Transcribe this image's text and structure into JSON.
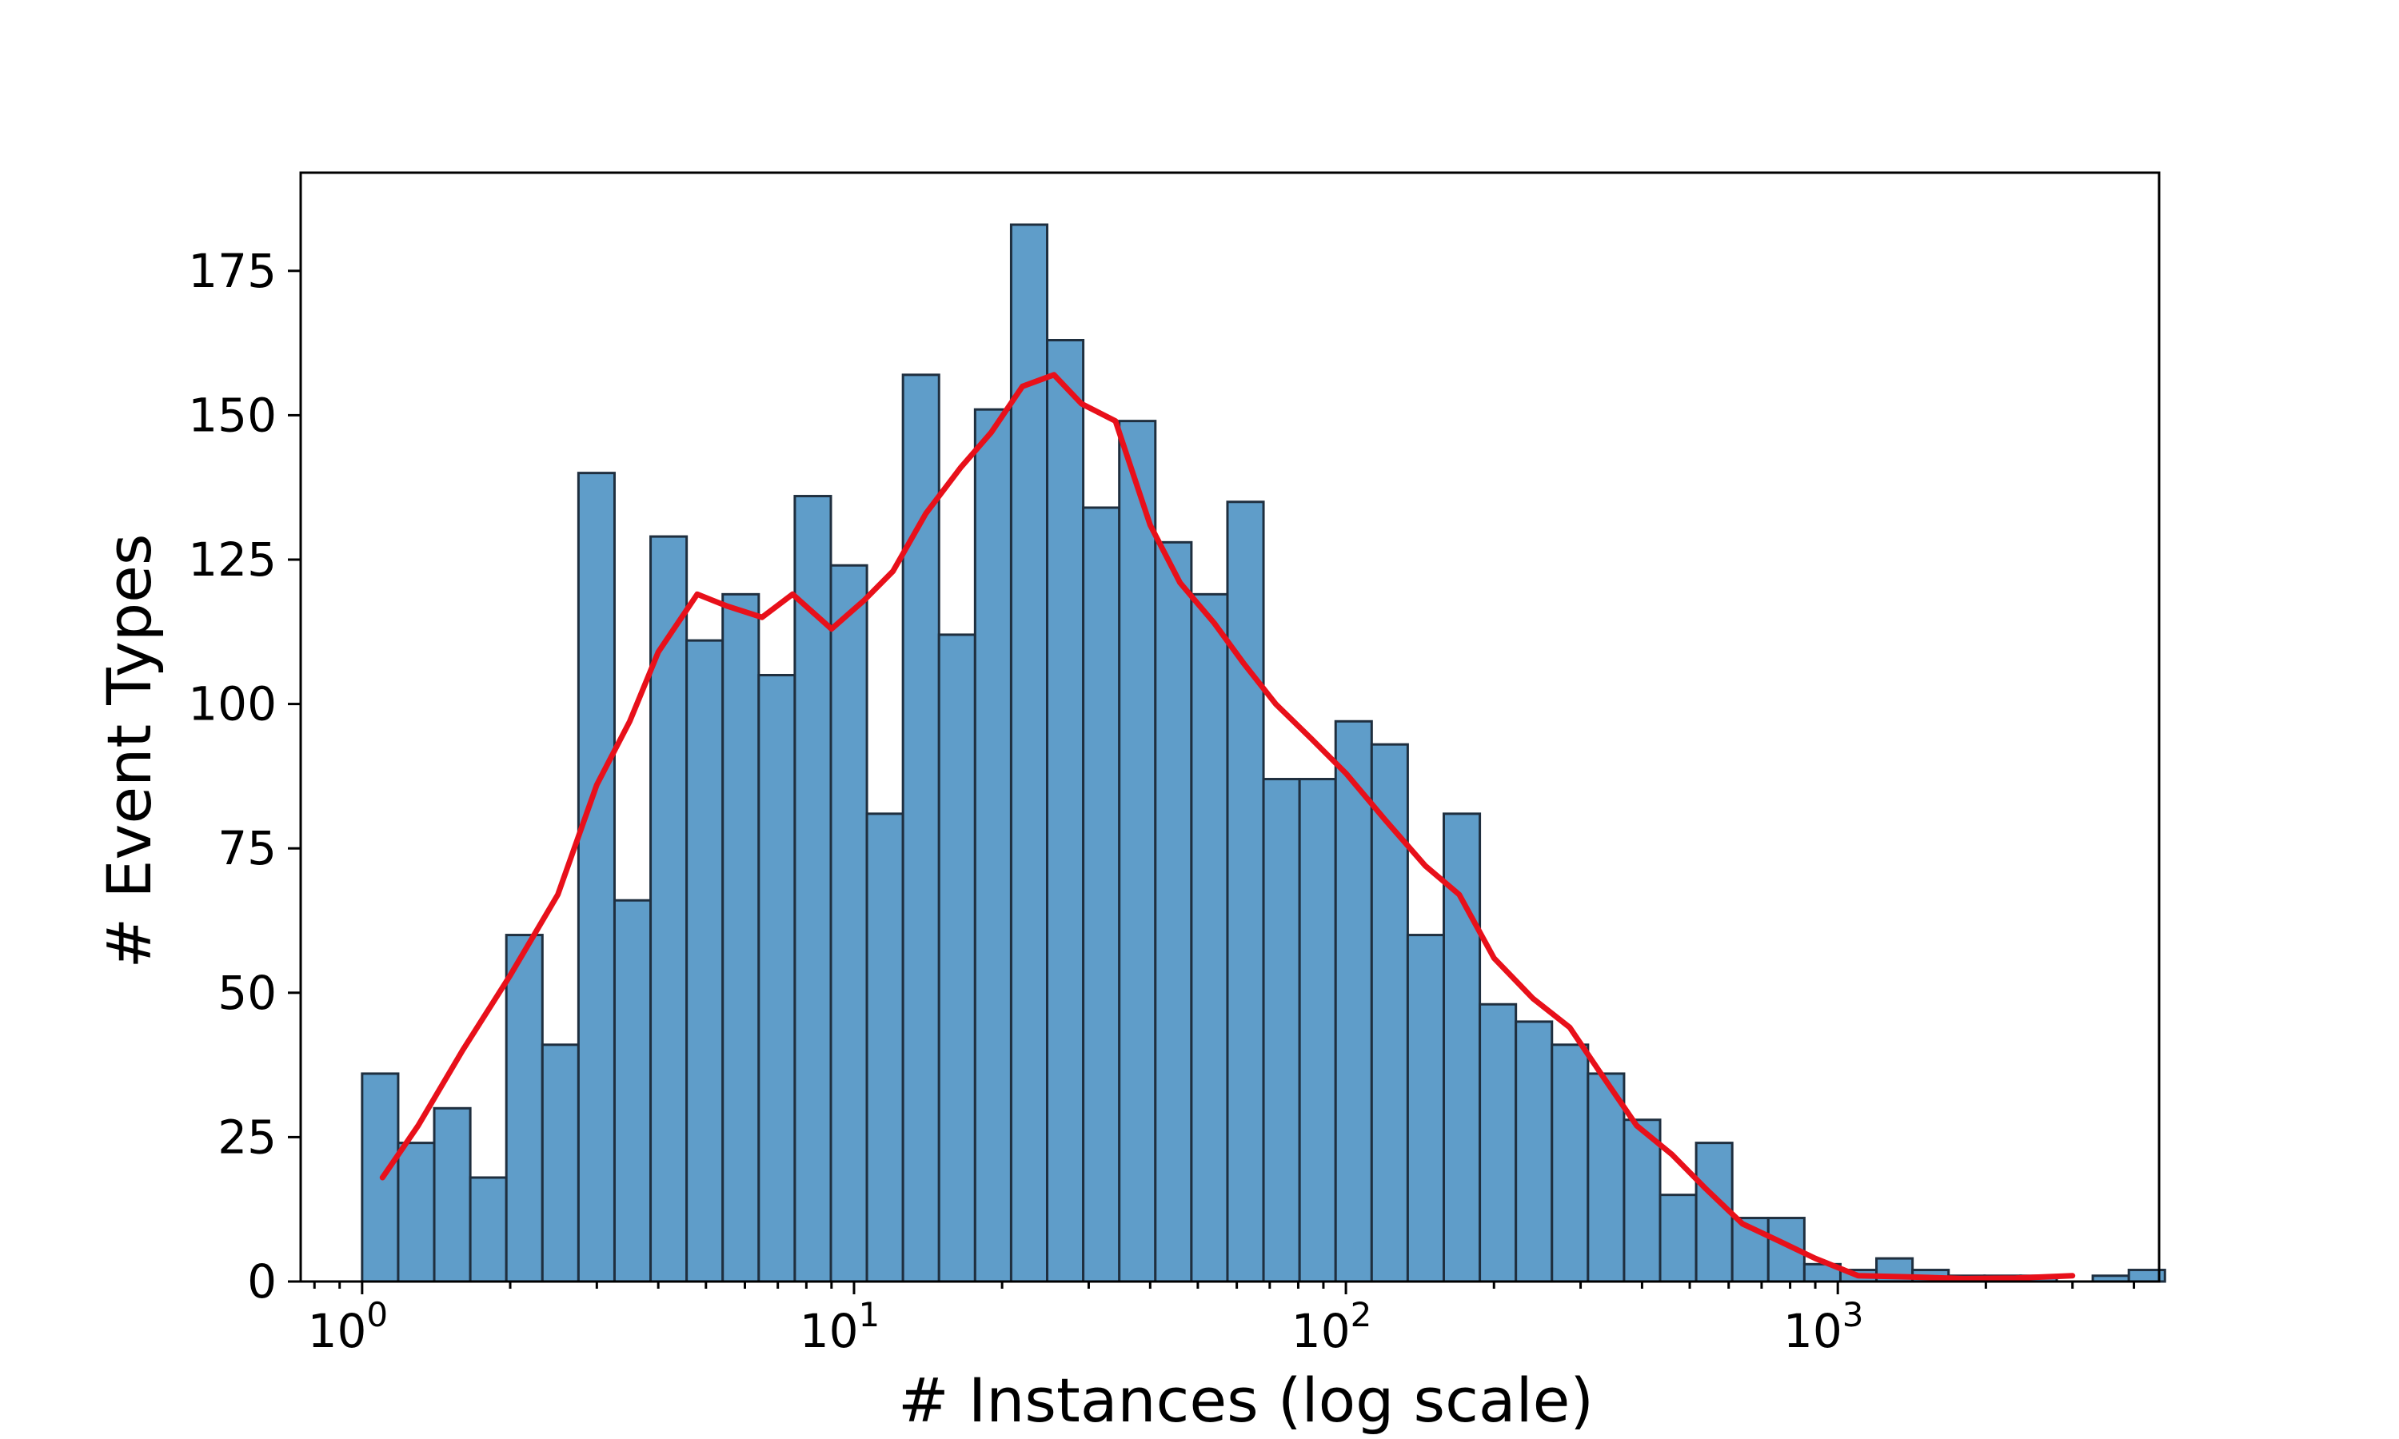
{
  "chart_data": {
    "type": "bar",
    "subtype": "histogram-log-x-with-kde",
    "title": "",
    "xlabel": "# Instances (log scale)",
    "ylabel": "# Event Types",
    "xscale": "log",
    "xlim": [
      0.75,
      4500
    ],
    "ylim": [
      0,
      192
    ],
    "x_ticks": [
      {
        "value": 1,
        "base": "10",
        "exp": "0"
      },
      {
        "value": 10,
        "base": "10",
        "exp": "1"
      },
      {
        "value": 100,
        "base": "10",
        "exp": "2"
      },
      {
        "value": 1000,
        "base": "10",
        "exp": "3"
      }
    ],
    "y_ticks": [
      {
        "value": 0,
        "label": "0"
      },
      {
        "value": 25,
        "label": "25"
      },
      {
        "value": 50,
        "label": "50"
      },
      {
        "value": 75,
        "label": "75"
      },
      {
        "value": 100,
        "label": "100"
      },
      {
        "value": 125,
        "label": "125"
      },
      {
        "value": 150,
        "label": "150"
      },
      {
        "value": 175,
        "label": "175"
      }
    ],
    "bins": {
      "log10_start": 0.0,
      "log10_width": 0.0733,
      "counts": [
        36,
        24,
        30,
        18,
        60,
        41,
        140,
        66,
        129,
        111,
        119,
        105,
        136,
        124,
        81,
        157,
        112,
        151,
        183,
        163,
        134,
        149,
        128,
        119,
        135,
        87,
        87,
        97,
        93,
        60,
        81,
        48,
        45,
        41,
        36,
        28,
        15,
        24,
        11,
        11,
        3,
        2,
        4,
        2,
        1,
        1,
        1,
        0,
        1,
        2
      ]
    },
    "kde": {
      "name": "density curve",
      "color": "#e8101a",
      "x": [
        1.1,
        1.3,
        1.6,
        2.0,
        2.5,
        3.0,
        3.5,
        4.0,
        4.8,
        5.5,
        6.5,
        7.5,
        9.0,
        10.5,
        12.0,
        14.0,
        16.5,
        19.0,
        22.0,
        25.5,
        29.0,
        34.0,
        40.0,
        46.0,
        54.0,
        62.0,
        72.0,
        85.0,
        100.0,
        120.0,
        145.0,
        170.0,
        200.0,
        240.0,
        285.0,
        330.0,
        390.0,
        460.0,
        540.0,
        640.0,
        760.0,
        900.0,
        1100.0,
        1400.0,
        1800.0,
        2300.0,
        3000.0
      ],
      "y": [
        18,
        27,
        40,
        53,
        67,
        86,
        97,
        109,
        119,
        117,
        115,
        119,
        113,
        118,
        123,
        133,
        141,
        147,
        155,
        157,
        152,
        149,
        131,
        121,
        114,
        107,
        100,
        94,
        88,
        80,
        72,
        67,
        56,
        49,
        44,
        36,
        27,
        22,
        16,
        10,
        7,
        4,
        1,
        0.8,
        0.5,
        0.6,
        1
      ]
    }
  }
}
